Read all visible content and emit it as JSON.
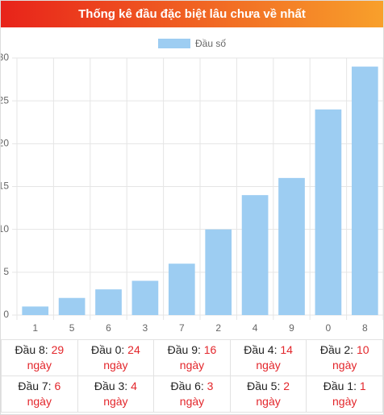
{
  "header": {
    "title": "Thống kê đầu đặc biệt lâu chưa về nhất"
  },
  "chart_data": {
    "type": "bar",
    "categories": [
      "1",
      "5",
      "6",
      "3",
      "7",
      "2",
      "4",
      "9",
      "0",
      "8"
    ],
    "series": [
      {
        "name": "Đầu số",
        "color": "#9dcdf2",
        "values": [
          1,
          2,
          3,
          4,
          6,
          10,
          14,
          16,
          24,
          29
        ]
      }
    ],
    "ylim": [
      0,
      30
    ],
    "yticks": [
      0,
      5,
      10,
      15,
      20,
      25,
      30
    ],
    "grid": true,
    "legend": "top"
  },
  "table": {
    "rows": [
      [
        {
          "label": "Đầu 8:",
          "value": 29,
          "unit": "ngày"
        },
        {
          "label": "Đầu 0:",
          "value": 24,
          "unit": "ngày"
        },
        {
          "label": "Đầu 9:",
          "value": 16,
          "unit": "ngày"
        },
        {
          "label": "Đầu 4:",
          "value": 14,
          "unit": "ngày"
        },
        {
          "label": "Đầu 2:",
          "value": 10,
          "unit": "ngày"
        }
      ],
      [
        {
          "label": "Đầu 7:",
          "value": 6,
          "unit": "ngày"
        },
        {
          "label": "Đầu 3:",
          "value": 4,
          "unit": "ngày"
        },
        {
          "label": "Đầu 6:",
          "value": 3,
          "unit": "ngày"
        },
        {
          "label": "Đầu 5:",
          "value": 2,
          "unit": "ngày"
        },
        {
          "label": "Đầu 1:",
          "value": 1,
          "unit": "ngày"
        }
      ]
    ]
  }
}
